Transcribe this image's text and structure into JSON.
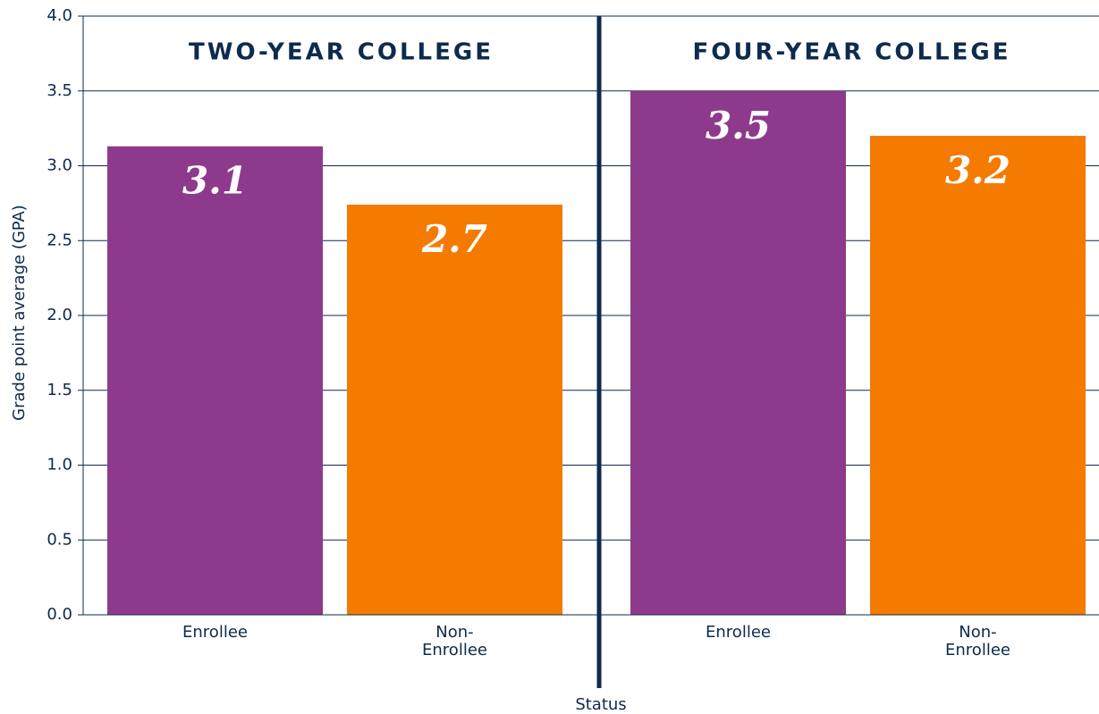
{
  "chart_data": [
    {
      "type": "bar",
      "title": "TWO-YEAR COLLEGE",
      "y_label": "Grade point average (GPA)",
      "x_label": "Status",
      "categories": [
        "Enrollee",
        "Non-Enrollee"
      ],
      "values": [
        3.13,
        2.74
      ],
      "value_labels": [
        "3.1",
        "2.7"
      ],
      "colors": [
        "#8e3a8c",
        "#f47a00"
      ],
      "ylim": [
        0,
        4
      ],
      "yticks": [
        {
          "value": 0,
          "label": "0.0"
        },
        0.5,
        {
          "value": 1,
          "label": "1.0"
        },
        1.5,
        {
          "value": 2,
          "label": "2.0"
        },
        2.5,
        {
          "value": 3,
          "label": "3.0"
        },
        3.5,
        {
          "value": 4,
          "label": "4.0"
        }
      ],
      "grid": true
    },
    {
      "type": "bar",
      "title": "FOUR-YEAR COLLEGE",
      "categories": [
        "Enrollee",
        "Non-Enrollee"
      ],
      "values": [
        3.5,
        3.2
      ],
      "value_labels": [
        "3.5",
        "3.2"
      ],
      "colors": [
        "#8e3a8c",
        "#f47a00"
      ],
      "ylim": [
        0,
        4
      ],
      "yticks": [
        {
          "value": 0,
          "label": "0.0"
        },
        0.5,
        {
          "value": 1,
          "label": "1.0"
        },
        1.5,
        {
          "value": 2,
          "label": "2.0"
        },
        2.5,
        {
          "value": 3,
          "label": "3.0"
        },
        3.5,
        {
          "value": 4,
          "label": "4.0"
        }
      ],
      "grid": true
    }
  ]
}
